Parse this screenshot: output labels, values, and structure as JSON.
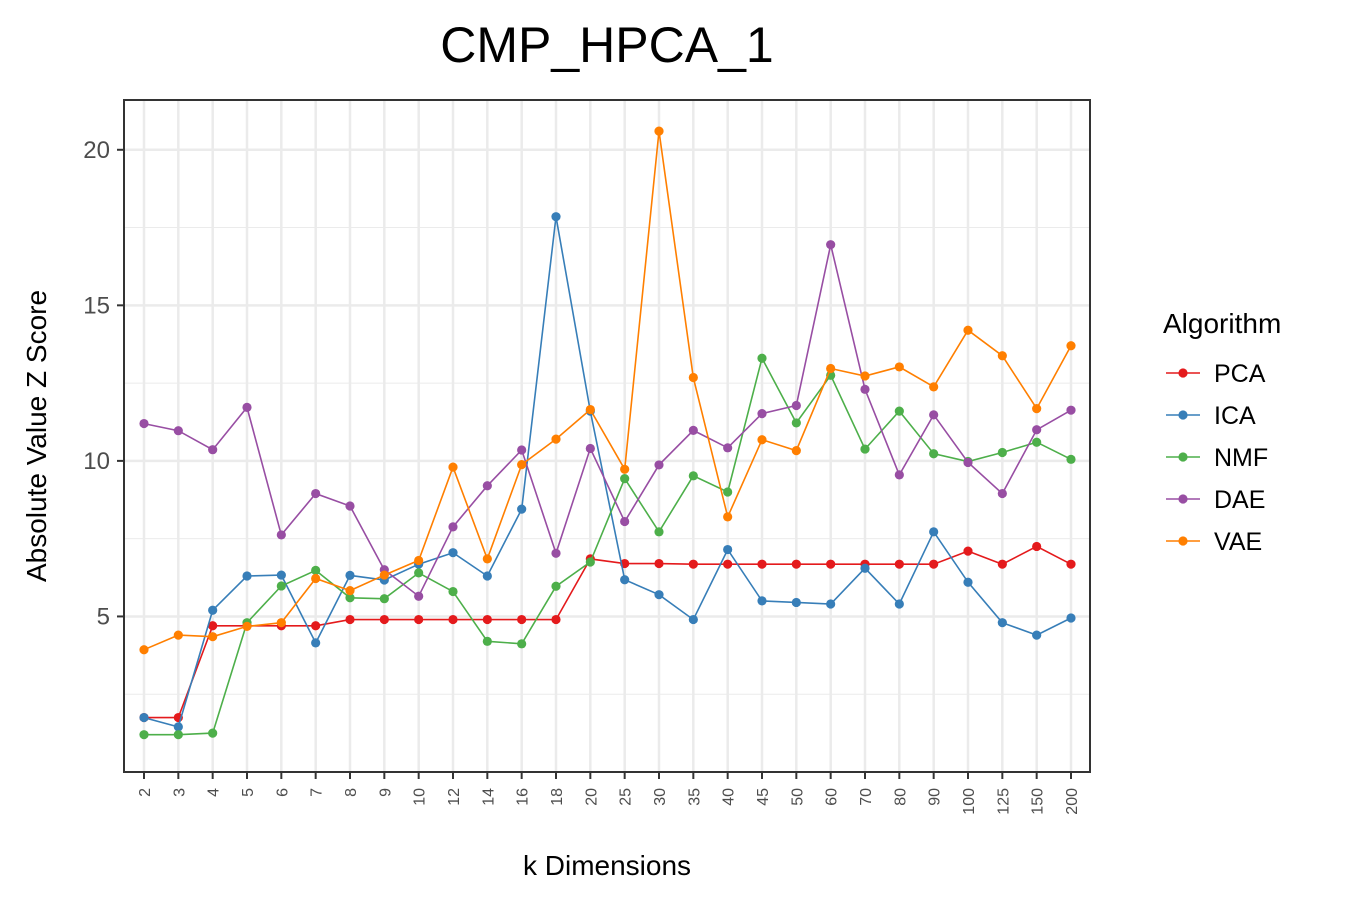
{
  "chart_data": {
    "type": "line",
    "title": "CMP_HPCA_1",
    "xlabel": "k Dimensions",
    "ylabel": "Absolute Value Z Score",
    "categories": [
      "2",
      "3",
      "4",
      "5",
      "6",
      "7",
      "8",
      "9",
      "10",
      "12",
      "14",
      "16",
      "18",
      "20",
      "25",
      "30",
      "35",
      "40",
      "45",
      "50",
      "60",
      "70",
      "80",
      "90",
      "100",
      "125",
      "150",
      "200"
    ],
    "ylim": [
      0.0,
      21.6
    ],
    "yticks": [
      5,
      10,
      15,
      20
    ],
    "grid": true,
    "legend": {
      "title": "Algorithm",
      "position": "right"
    },
    "series": [
      {
        "name": "PCA",
        "color": "#e41a1c",
        "values": [
          1.75,
          1.75,
          4.7,
          4.7,
          4.7,
          4.7,
          4.9,
          4.9,
          4.9,
          4.9,
          4.9,
          4.9,
          4.9,
          6.85,
          6.7,
          6.7,
          6.68,
          6.68,
          6.68,
          6.68,
          6.68,
          6.68,
          6.68,
          6.68,
          7.1,
          6.68,
          7.25,
          6.68
        ]
      },
      {
        "name": "ICA",
        "color": "#377eb8",
        "values": [
          1.75,
          1.45,
          5.2,
          6.3,
          6.33,
          4.15,
          6.32,
          6.17,
          6.68,
          7.05,
          6.3,
          8.45,
          17.85,
          11.6,
          6.18,
          5.7,
          4.9,
          7.15,
          5.5,
          5.45,
          5.4,
          6.55,
          5.4,
          7.72,
          6.1,
          4.8,
          4.4,
          4.95
        ]
      },
      {
        "name": "NMF",
        "color": "#4daf4a",
        "values": [
          1.2,
          1.2,
          1.25,
          4.8,
          5.98,
          6.48,
          5.6,
          5.57,
          6.4,
          5.8,
          4.2,
          4.12,
          5.97,
          6.75,
          9.43,
          7.72,
          9.52,
          9.0,
          13.3,
          11.22,
          12.75,
          10.38,
          11.6,
          10.23,
          9.98,
          10.27,
          10.6,
          10.05
        ]
      },
      {
        "name": "DAE",
        "color": "#984ea3",
        "values": [
          11.2,
          10.97,
          10.36,
          11.72,
          7.62,
          8.95,
          8.55,
          6.5,
          5.65,
          7.88,
          9.2,
          10.35,
          7.03,
          10.4,
          8.05,
          9.87,
          10.98,
          10.42,
          11.52,
          11.78,
          16.95,
          12.3,
          9.55,
          11.48,
          9.95,
          8.95,
          11.0,
          11.63
        ]
      },
      {
        "name": "VAE",
        "color": "#ff7f00",
        "values": [
          3.93,
          4.4,
          4.35,
          4.68,
          4.8,
          6.22,
          5.83,
          6.33,
          6.8,
          9.8,
          6.85,
          9.88,
          10.7,
          11.65,
          9.73,
          20.6,
          12.68,
          8.2,
          10.68,
          10.33,
          12.97,
          12.73,
          13.02,
          12.38,
          14.2,
          13.38,
          11.68,
          13.7
        ]
      }
    ]
  }
}
